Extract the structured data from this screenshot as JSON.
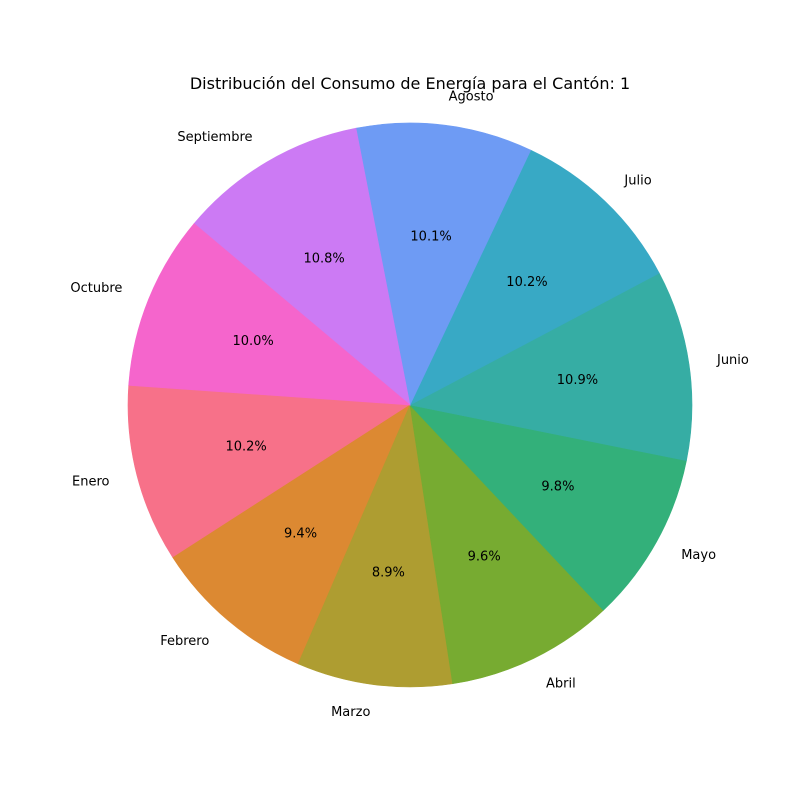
{
  "chart_data": {
    "type": "pie",
    "title": "Distribución del Consumo de Energía para el Cantón: 1",
    "start_angle_deg": 176,
    "direction": "counterclockwise",
    "slices": [
      {
        "label": "Enero",
        "value": 10.2,
        "pct_label": "10.2%",
        "color": "#f77189"
      },
      {
        "label": "Febrero",
        "value": 9.4,
        "pct_label": "9.4%",
        "color": "#dc8932"
      },
      {
        "label": "Marzo",
        "value": 8.9,
        "pct_label": "8.9%",
        "color": "#ae9d31"
      },
      {
        "label": "Abril",
        "value": 9.6,
        "pct_label": "9.6%",
        "color": "#77ab31"
      },
      {
        "label": "Mayo",
        "value": 9.8,
        "pct_label": "9.8%",
        "color": "#33b07a"
      },
      {
        "label": "Junio",
        "value": 10.9,
        "pct_label": "10.9%",
        "color": "#36ada4"
      },
      {
        "label": "Julio",
        "value": 10.2,
        "pct_label": "10.2%",
        "color": "#38a9c5"
      },
      {
        "label": "Agosto",
        "value": 10.1,
        "pct_label": "10.1%",
        "color": "#6e9bf4"
      },
      {
        "label": "Septiembre",
        "value": 10.8,
        "pct_label": "10.8%",
        "color": "#cc7af4"
      },
      {
        "label": "Octubre",
        "value": 10.0,
        "pct_label": "10.0%",
        "color": "#f565cc"
      }
    ]
  }
}
